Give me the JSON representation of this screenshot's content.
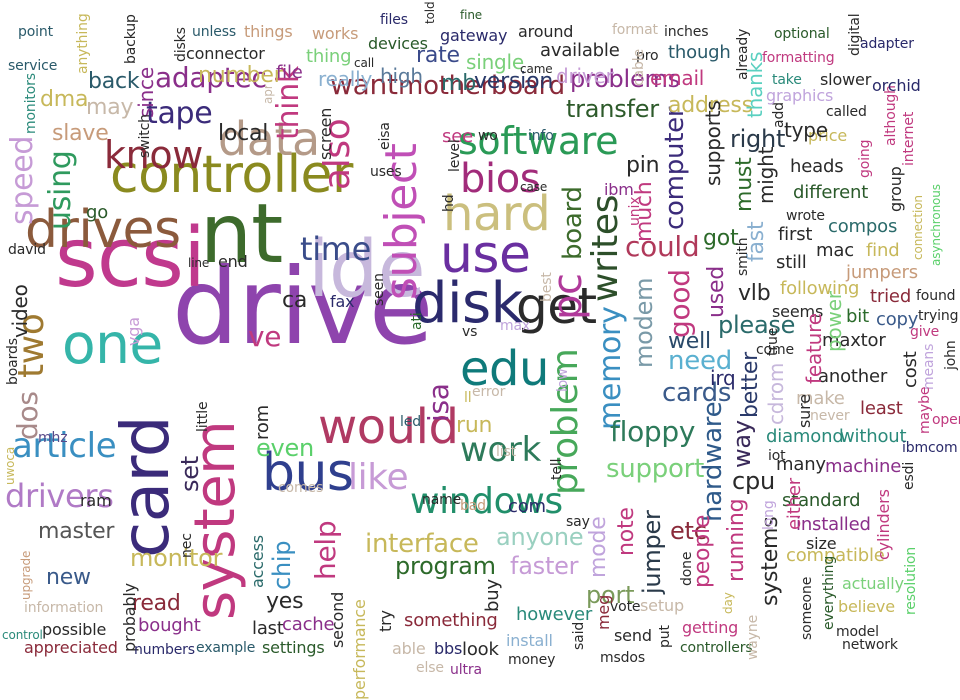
{
  "title": "",
  "words": [
    {
      "text": "drive",
      "color": "#8e44ad"
    },
    {
      "text": "scsi",
      "color": "#c0398d"
    },
    {
      "text": "nt",
      "color": "#3d6b2c"
    },
    {
      "text": "ide",
      "color": "#c7b8dc"
    },
    {
      "text": "card",
      "color": "#3b2b7a"
    },
    {
      "text": "controller",
      "color": "#8a8a1f"
    },
    {
      "text": "drives",
      "color": "#8b5a3c"
    },
    {
      "text": "system",
      "color": "#c0397f"
    },
    {
      "text": "disk",
      "color": "#2b2a6d"
    },
    {
      "text": "one",
      "color": "#35b5a9"
    },
    {
      "text": "would",
      "color": "#b03a63"
    },
    {
      "text": "bus",
      "color": "#2f3f8e"
    },
    {
      "text": "use",
      "color": "#6a2fa0"
    },
    {
      "text": "get",
      "color": "#2b2b2b"
    },
    {
      "text": "data",
      "color": "#b49a88"
    },
    {
      "text": "hard",
      "color": "#cbbf7e"
    },
    {
      "text": "edu",
      "color": "#0f7a7a"
    },
    {
      "text": "subject",
      "color": "#c04fb6"
    },
    {
      "text": "know",
      "color": "#8a2a3a"
    },
    {
      "text": "windows",
      "color": "#218f6a"
    },
    {
      "text": "problem",
      "color": "#47a85a"
    },
    {
      "text": "writes",
      "color": "#2d4f2a"
    },
    {
      "text": "software",
      "color": "#2a9a56"
    },
    {
      "text": "bios",
      "color": "#a12b7a"
    },
    {
      "text": "like",
      "color": "#c79bd6"
    },
    {
      "text": "two",
      "color": "#9f7a31"
    },
    {
      "text": "article",
      "color": "#3a8fc1"
    },
    {
      "text": "drivers",
      "color": "#b07ac6"
    },
    {
      "text": "time",
      "color": "#3a4c8a"
    },
    {
      "text": "work",
      "color": "#2d7a5a"
    },
    {
      "text": "pc",
      "color": "#b0399a"
    },
    {
      "text": "also",
      "color": "#c0397f"
    },
    {
      "text": "tape",
      "color": "#3b2b7a"
    },
    {
      "text": "speed",
      "color": "#c69bd6"
    },
    {
      "text": "using",
      "color": "#2f9a5e"
    },
    {
      "text": "want",
      "color": "#8a2a3a"
    },
    {
      "text": "motherboard",
      "color": "#8a2a3a"
    },
    {
      "text": "interface",
      "color": "#c7b85a"
    },
    {
      "text": "think",
      "color": "#c0397f"
    },
    {
      "text": "adaptec",
      "color": "#8a2f8a"
    },
    {
      "text": "memory",
      "color": "#3a8fc1"
    },
    {
      "text": "could",
      "color": "#b0395a"
    },
    {
      "text": "floppy",
      "color": "#2d7a5a"
    },
    {
      "text": "support",
      "color": "#7ad07a"
    },
    {
      "text": "hardware",
      "color": "#2f5a8a"
    },
    {
      "text": "board",
      "color": "#3d6b2c"
    },
    {
      "text": "good",
      "color": "#c0397f"
    },
    {
      "text": "modem",
      "color": "#7a9aa8"
    },
    {
      "text": "computer",
      "color": "#3b2b7a"
    },
    {
      "text": "ve",
      "color": "#c0397f"
    },
    {
      "text": "isa",
      "color": "#8a2f8a"
    },
    {
      "text": "cards",
      "color": "#3a5a8a"
    },
    {
      "text": "need",
      "color": "#5ab0d0"
    },
    {
      "text": "transfer",
      "color": "#2d5a2a"
    },
    {
      "text": "problems",
      "color": "#8a2f8a"
    },
    {
      "text": "monitor",
      "color": "#c7b85a"
    },
    {
      "text": "anyone",
      "color": "#9ad0c0"
    },
    {
      "text": "master",
      "color": "#555555"
    },
    {
      "text": "dos",
      "color": "#a88a8a"
    },
    {
      "text": "set",
      "color": "#3a2a5a"
    },
    {
      "text": "even",
      "color": "#5ad06a"
    },
    {
      "text": "help",
      "color": "#c0397f"
    },
    {
      "text": "chip",
      "color": "#3a8fc1"
    },
    {
      "text": "run",
      "color": "#c7b85a"
    },
    {
      "text": "program",
      "color": "#2d6a2a"
    },
    {
      "text": "jumper",
      "color": "#2a3a4a"
    },
    {
      "text": "mode",
      "color": "#c0a4dc"
    },
    {
      "text": "port",
      "color": "#7a9a5a"
    },
    {
      "text": "faster",
      "color": "#c69bd6"
    },
    {
      "text": "note",
      "color": "#c0397f"
    },
    {
      "text": "etc",
      "color": "#8a2a3a"
    },
    {
      "text": "people",
      "color": "#c0397f"
    },
    {
      "text": "way",
      "color": "#3a2a5a"
    },
    {
      "text": "well",
      "color": "#2a4a6a"
    },
    {
      "text": "pin",
      "color": "#2a2a2a"
    },
    {
      "text": "much",
      "color": "#c0397f"
    },
    {
      "text": "address",
      "color": "#c7b85a"
    },
    {
      "text": "used",
      "color": "#8a2f8a"
    },
    {
      "text": "got",
      "color": "#2d6a2a"
    },
    {
      "text": "right",
      "color": "#2a3a4a"
    },
    {
      "text": "fast",
      "color": "#8ab0d0"
    },
    {
      "text": "must",
      "color": "#2d6a2a"
    },
    {
      "text": "please",
      "color": "#2a6a6a"
    },
    {
      "text": "vlb",
      "color": "#2a2a2a"
    },
    {
      "text": "cpu",
      "color": "#2a2a2a"
    },
    {
      "text": "running",
      "color": "#c0397f"
    },
    {
      "text": "systems",
      "color": "#2a2a2a"
    },
    {
      "text": "local",
      "color": "#2a2a2a"
    },
    {
      "text": "slave",
      "color": "#c79b7a"
    },
    {
      "text": "dma",
      "color": "#c7b85a"
    },
    {
      "text": "may",
      "color": "#c7b8a8"
    },
    {
      "text": "back",
      "color": "#2a5a6a"
    },
    {
      "text": "number",
      "color": "#c7b85a"
    },
    {
      "text": "since",
      "color": "#8a2f8a"
    },
    {
      "text": "version",
      "color": "#2a3a6a"
    },
    {
      "text": "mb",
      "color": "#2a6a6a"
    },
    {
      "text": "high",
      "color": "#5a7a9a"
    },
    {
      "text": "really",
      "color": "#8ab0d0"
    },
    {
      "text": "rate",
      "color": "#3a4a8a"
    },
    {
      "text": "single",
      "color": "#7ad07a"
    },
    {
      "text": "driver",
      "color": "#c69bd6"
    },
    {
      "text": "thanks",
      "color": "#5ad0c0"
    },
    {
      "text": "email",
      "color": "#c0397f"
    },
    {
      "text": "supports",
      "color": "#2a2a2a"
    },
    {
      "text": "might",
      "color": "#2a2a2a"
    },
    {
      "text": "first",
      "color": "#2a2a2a"
    },
    {
      "text": "mac",
      "color": "#2a2a2a"
    },
    {
      "text": "still",
      "color": "#2a2a2a"
    },
    {
      "text": "heads",
      "color": "#2a2a2a"
    },
    {
      "text": "different",
      "color": "#2a5a2a"
    },
    {
      "text": "compos",
      "color": "#2a6a6a"
    },
    {
      "text": "find",
      "color": "#c7b85a"
    },
    {
      "text": "jumpers",
      "color": "#c79b7a"
    },
    {
      "text": "following",
      "color": "#c7b85a"
    },
    {
      "text": "seems",
      "color": "#2a2a2a"
    },
    {
      "text": "bit",
      "color": "#2a6a2a"
    },
    {
      "text": "tried",
      "color": "#8a2a3a"
    },
    {
      "text": "copy",
      "color": "#3a5a8a"
    },
    {
      "text": "maxtor",
      "color": "#2a2a2a"
    },
    {
      "text": "another",
      "color": "#2a2a2a"
    },
    {
      "text": "irq",
      "color": "#2a2a6a"
    },
    {
      "text": "better",
      "color": "#2a3a6a"
    },
    {
      "text": "cdrom",
      "color": "#c7b8dc"
    },
    {
      "text": "make",
      "color": "#c7b8a8"
    },
    {
      "text": "least",
      "color": "#8a2a3a"
    },
    {
      "text": "diamond",
      "color": "#2a8a7a"
    },
    {
      "text": "without",
      "color": "#2a8a7a"
    },
    {
      "text": "many",
      "color": "#2a2a2a"
    },
    {
      "text": "machine",
      "color": "#8a2f8a"
    },
    {
      "text": "standard",
      "color": "#2a5a2a"
    },
    {
      "text": "installed",
      "color": "#8a2f8a"
    },
    {
      "text": "compatible",
      "color": "#c7b85a"
    },
    {
      "text": "actually",
      "color": "#7ad07a"
    },
    {
      "text": "believe",
      "color": "#c7b85a"
    },
    {
      "text": "model",
      "color": "#2a2a2a"
    },
    {
      "text": "network",
      "color": "#2a2a2a"
    },
    {
      "text": "cylinders",
      "color": "#c0397f"
    },
    {
      "text": "resolution",
      "color": "#5ad06a"
    },
    {
      "text": "open",
      "color": "#c0397f"
    },
    {
      "text": "video",
      "color": "#2a2a2a"
    },
    {
      "text": "david",
      "color": "#2a2a2a"
    },
    {
      "text": "boards",
      "color": "#2a2a2a"
    },
    {
      "text": "vga",
      "color": "#c79bd6"
    },
    {
      "text": "mhz",
      "color": "#5a4a8a"
    },
    {
      "text": "ram",
      "color": "#2a2a2a"
    },
    {
      "text": "new",
      "color": "#3a5a8a"
    },
    {
      "text": "read",
      "color": "#8a2a3a"
    },
    {
      "text": "bought",
      "color": "#8a2f8a"
    },
    {
      "text": "probably",
      "color": "#2a2a2a"
    },
    {
      "text": "possible",
      "color": "#2a2a2a"
    },
    {
      "text": "appreciated",
      "color": "#8a2a3a"
    },
    {
      "text": "information",
      "color": "#c7b8a8"
    },
    {
      "text": "control",
      "color": "#2a8a7a"
    },
    {
      "text": "upgrade",
      "color": "#c79b7a"
    },
    {
      "text": "uwoca",
      "color": "#c7b85a"
    },
    {
      "text": "example",
      "color": "#2a5a6a"
    },
    {
      "text": "numbers",
      "color": "#2a2a6a"
    },
    {
      "text": "settings",
      "color": "#2a5a2a"
    },
    {
      "text": "last",
      "color": "#2a2a2a"
    },
    {
      "text": "cache",
      "color": "#8a2f8a"
    },
    {
      "text": "yes",
      "color": "#2a2a2a"
    },
    {
      "text": "second",
      "color": "#2a2a2a"
    },
    {
      "text": "access",
      "color": "#2a6a6a"
    },
    {
      "text": "nec",
      "color": "#2a2a2a"
    },
    {
      "text": "rom",
      "color": "#2a2a2a"
    },
    {
      "text": "comes",
      "color": "#c7b8a8"
    },
    {
      "text": "ca",
      "color": "#2a2a2a"
    },
    {
      "text": "fax",
      "color": "#2a2a6a"
    },
    {
      "text": "end",
      "color": "#2a2a2a"
    },
    {
      "text": "little",
      "color": "#2a2a2a"
    },
    {
      "text": "line",
      "color": "#2a2a2a"
    },
    {
      "text": "ati",
      "color": "#2a6a2a"
    },
    {
      "text": "seen",
      "color": "#2a2a2a"
    },
    {
      "text": "led",
      "color": "#2a5a6a"
    },
    {
      "text": "performance",
      "color": "#c7b85a"
    },
    {
      "text": "try",
      "color": "#2a2a2a"
    },
    {
      "text": "something",
      "color": "#8a2a3a"
    },
    {
      "text": "able",
      "color": "#c7b8a8"
    },
    {
      "text": "bbs",
      "color": "#2a2a6a"
    },
    {
      "text": "else",
      "color": "#c7b8a8"
    },
    {
      "text": "look",
      "color": "#2a2a2a"
    },
    {
      "text": "ultra",
      "color": "#8a2f8a"
    },
    {
      "text": "buy",
      "color": "#2a2a2a"
    },
    {
      "text": "install",
      "color": "#8ab0d0"
    },
    {
      "text": "money",
      "color": "#2a2a2a"
    },
    {
      "text": "however",
      "color": "#2a8a7a"
    },
    {
      "text": "said",
      "color": "#2a2a2a"
    },
    {
      "text": "msdos",
      "color": "#2a2a2a"
    },
    {
      "text": "send",
      "color": "#2a2a2a"
    },
    {
      "text": "meg",
      "color": "#8a2a3a"
    },
    {
      "text": "setup",
      "color": "#c7b8a8"
    },
    {
      "text": "put",
      "color": "#2a2a2a"
    },
    {
      "text": "vote",
      "color": "#2a2a2a"
    },
    {
      "text": "getting",
      "color": "#c0397f"
    },
    {
      "text": "controllers",
      "color": "#2a5a2a"
    },
    {
      "text": "done",
      "color": "#2a2a2a"
    },
    {
      "text": "day",
      "color": "#c7b85a"
    },
    {
      "text": "wayne",
      "color": "#c7b8a8"
    },
    {
      "text": "someone",
      "color": "#2a2a2a"
    },
    {
      "text": "everything",
      "color": "#2a5a2a"
    },
    {
      "text": "size",
      "color": "#2a2a2a"
    },
    {
      "text": "long",
      "color": "#c0a4dc"
    },
    {
      "text": "either",
      "color": "#c0397f"
    },
    {
      "text": "iot",
      "color": "#2a2a2a"
    },
    {
      "text": "sure",
      "color": "#2a2a2a"
    },
    {
      "text": "never",
      "color": "#c7b8a8"
    },
    {
      "text": "feature",
      "color": "#c0397f"
    },
    {
      "text": "power",
      "color": "#7ad07a"
    },
    {
      "text": "cost",
      "color": "#2a2a2a"
    },
    {
      "text": "true",
      "color": "#2a2a2a"
    },
    {
      "text": "come",
      "color": "#2a2a2a"
    },
    {
      "text": "smith",
      "color": "#2a2a2a"
    },
    {
      "text": "means",
      "color": "#c0a4dc"
    },
    {
      "text": "maybe",
      "color": "#c0397f"
    },
    {
      "text": "give",
      "color": "#c0397f"
    },
    {
      "text": "ibmcom",
      "color": "#2a2a6a"
    },
    {
      "text": "esdi",
      "color": "#2a2a2a"
    },
    {
      "text": "john",
      "color": "#2a2a2a"
    },
    {
      "text": "trying",
      "color": "#2a2a2a"
    },
    {
      "text": "found",
      "color": "#2a2a2a"
    },
    {
      "text": "asynchronous",
      "color": "#5ad06a"
    },
    {
      "text": "connection",
      "color": "#c7b85a"
    },
    {
      "text": "group",
      "color": "#2a2a2a"
    },
    {
      "text": "wrote",
      "color": "#2a2a2a"
    },
    {
      "text": "going",
      "color": "#c0397f"
    },
    {
      "text": "price",
      "color": "#c7b85a"
    },
    {
      "text": "type",
      "color": "#2a2a2a"
    },
    {
      "text": "add",
      "color": "#2a2a2a"
    },
    {
      "text": "although",
      "color": "#c0397f"
    },
    {
      "text": "internet",
      "color": "#c0397f"
    },
    {
      "text": "called",
      "color": "#2a2a2a"
    },
    {
      "text": "orchid",
      "color": "#2a2a6a"
    },
    {
      "text": "slower",
      "color": "#2a2a2a"
    },
    {
      "text": "take",
      "color": "#2a8a7a"
    },
    {
      "text": "graphics",
      "color": "#c0a4dc"
    },
    {
      "text": "already",
      "color": "#2a2a2a"
    },
    {
      "text": "formatting",
      "color": "#c0397f"
    },
    {
      "text": "optional",
      "color": "#2a5a2a"
    },
    {
      "text": "digital",
      "color": "#2a2a2a"
    },
    {
      "text": "adapter",
      "color": "#2a2a6a"
    },
    {
      "text": "though",
      "color": "#2a5a6a"
    },
    {
      "text": "inches",
      "color": "#2a2a2a"
    },
    {
      "text": "format",
      "color": "#c7b8a8"
    },
    {
      "text": "pro",
      "color": "#2a2a2a"
    },
    {
      "text": "cable",
      "color": "#c7b8a8"
    },
    {
      "text": "available",
      "color": "#2a2a2a"
    },
    {
      "text": "came",
      "color": "#2a2a2a"
    },
    {
      "text": "around",
      "color": "#2a2a2a"
    },
    {
      "text": "fine",
      "color": "#2a5a2a"
    },
    {
      "text": "gateway",
      "color": "#2a2a6a"
    },
    {
      "text": "told",
      "color": "#2a2a2a"
    },
    {
      "text": "files",
      "color": "#2a2a6a"
    },
    {
      "text": "devices",
      "color": "#2a5a2a"
    },
    {
      "text": "call",
      "color": "#2a2a2a"
    },
    {
      "text": "works",
      "color": "#c79b7a"
    },
    {
      "text": "thing",
      "color": "#7ad07a"
    },
    {
      "text": "things",
      "color": "#c79b7a"
    },
    {
      "text": "unless",
      "color": "#2a5a6a"
    },
    {
      "text": "connector",
      "color": "#2a2a2a"
    },
    {
      "text": "file",
      "color": "#8a2f8a"
    },
    {
      "text": "disks",
      "color": "#2a2a2a"
    },
    {
      "text": "backup",
      "color": "#2a2a2a"
    },
    {
      "text": "anything",
      "color": "#c7b85a"
    },
    {
      "text": "point",
      "color": "#2a5a6a"
    },
    {
      "text": "service",
      "color": "#2a5a6a"
    },
    {
      "text": "monitors",
      "color": "#2a8a7a"
    },
    {
      "text": "switch",
      "color": "#2a2a2a"
    },
    {
      "text": "apr",
      "color": "#c7b8a8"
    },
    {
      "text": "screen",
      "color": "#2a2a2a"
    },
    {
      "text": "eisa",
      "color": "#2a2a2a"
    },
    {
      "text": "uses",
      "color": "#2a2a2a"
    },
    {
      "text": "see",
      "color": "#c0397f"
    },
    {
      "text": "wo",
      "color": "#2a2a2a"
    },
    {
      "text": "info",
      "color": "#2a5a6a"
    },
    {
      "text": "hd",
      "color": "#2a2a2a"
    },
    {
      "text": "level",
      "color": "#2a2a2a"
    },
    {
      "text": "case",
      "color": "#2a2a2a"
    },
    {
      "text": "ibm",
      "color": "#8a2f8a"
    },
    {
      "text": "unix",
      "color": "#c0397f"
    },
    {
      "text": "best",
      "color": "#c7b8a8"
    },
    {
      "text": "max",
      "color": "#c0a4dc"
    },
    {
      "text": "vs",
      "color": "#2a2a2a"
    },
    {
      "text": "low",
      "color": "#c0a4dc"
    },
    {
      "text": "ll",
      "color": "#c7b85a"
    },
    {
      "text": "error",
      "color": "#c7b8a8"
    },
    {
      "text": "list",
      "color": "#c7b8a8"
    },
    {
      "text": "tell",
      "color": "#2a2a2a"
    },
    {
      "text": "com",
      "color": "#2a2a6a"
    },
    {
      "text": "say",
      "color": "#2a2a2a"
    },
    {
      "text": "name",
      "color": "#2a2a2a"
    },
    {
      "text": "bad",
      "color": "#c79b7a"
    },
    {
      "text": "go",
      "color": "#2a5a2a"
    }
  ]
}
